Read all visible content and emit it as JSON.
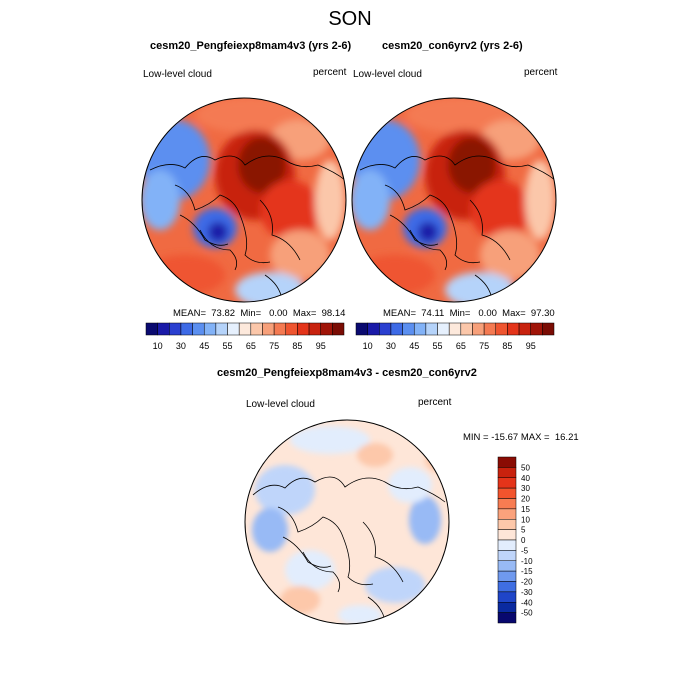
{
  "figure": {
    "title": "SON"
  },
  "panels": [
    {
      "title": "cesm20_Pengfeiexp8mam4v3 (yrs 2-6)",
      "left_label": "Low-level cloud",
      "right_label": "percent",
      "stats": "MEAN=  73.82  Min=   0.00  Max=  98.14"
    },
    {
      "title": "cesm20_con6yrv2 (yrs 2-6)",
      "left_label": "Low-level cloud",
      "right_label": "percent",
      "stats": "MEAN=  74.11  Min=   0.00  Max=  97.30"
    },
    {
      "title": "cesm20_Pengfeiexp8mam4v3 - cesm20_con6yrv2",
      "left_label": "Low-level cloud",
      "right_label": "percent",
      "stats": "MIN = -15.67 MAX =  16.21"
    }
  ],
  "abs_colorbar": {
    "labels": [
      "10",
      "30",
      "45",
      "55",
      "65",
      "75",
      "85",
      "95"
    ],
    "colors": [
      "#0a0a70",
      "#1a1aa8",
      "#2a3fd0",
      "#3d6ae6",
      "#5b8ff0",
      "#82b2f7",
      "#b5d3fa",
      "#e6f0fd",
      "#fde9dc",
      "#fbc7aa",
      "#f7a07a",
      "#f47a52",
      "#ef5530",
      "#e4341a",
      "#c8220e",
      "#a01408",
      "#7a0c04"
    ]
  },
  "diff_colorbar": {
    "labels": [
      "50",
      "40",
      "30",
      "20",
      "15",
      "10",
      "5",
      "0",
      "-5",
      "-10",
      "-15",
      "-20",
      "-30",
      "-40",
      "-50"
    ],
    "colors": [
      "#8a0c04",
      "#c8220e",
      "#e4341a",
      "#f2542d",
      "#f77c52",
      "#fba27c",
      "#fdc8aa",
      "#fee6d8",
      "#e2edfd",
      "#bfd5fa",
      "#98baf5",
      "#6f99ee",
      "#3f6ee2",
      "#1f45c8",
      "#0a2aa0",
      "#08086e"
    ]
  }
}
